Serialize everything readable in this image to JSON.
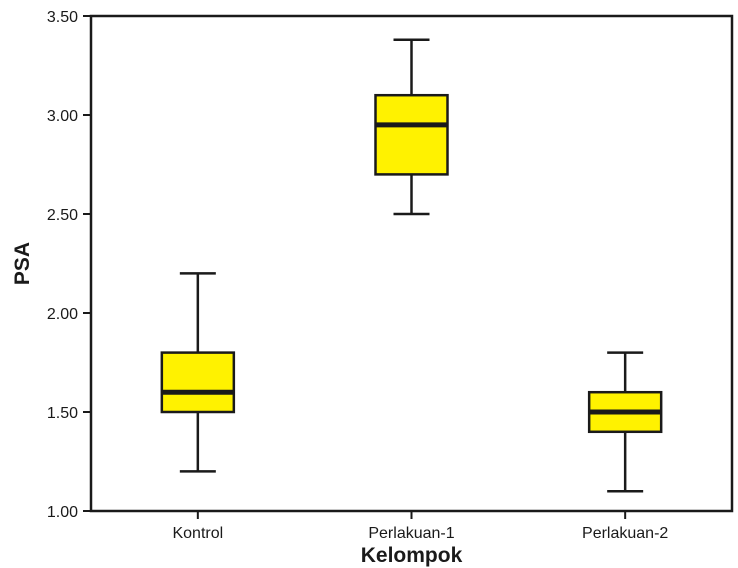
{
  "chart_data": {
    "type": "boxplot",
    "title": "",
    "xlabel": "Kelompok",
    "ylabel": "PSA",
    "ylim": [
      1.0,
      3.5
    ],
    "yticks": [
      "1.00",
      "1.50",
      "2.00",
      "2.50",
      "3.00",
      "3.50"
    ],
    "grid": false,
    "box_color": "#fff200",
    "categories": [
      "Kontrol",
      "Perlakuan-1",
      "Perlakuan-2"
    ],
    "boxes": [
      {
        "category": "Kontrol",
        "min": 1.2,
        "q1": 1.5,
        "median": 1.6,
        "q3": 1.8,
        "max": 2.2
      },
      {
        "category": "Perlakuan-1",
        "min": 2.5,
        "q1": 2.7,
        "median": 2.95,
        "q3": 3.1,
        "max": 3.38
      },
      {
        "category": "Perlakuan-2",
        "min": 1.1,
        "q1": 1.4,
        "median": 1.5,
        "q3": 1.6,
        "max": 1.8
      }
    ]
  }
}
